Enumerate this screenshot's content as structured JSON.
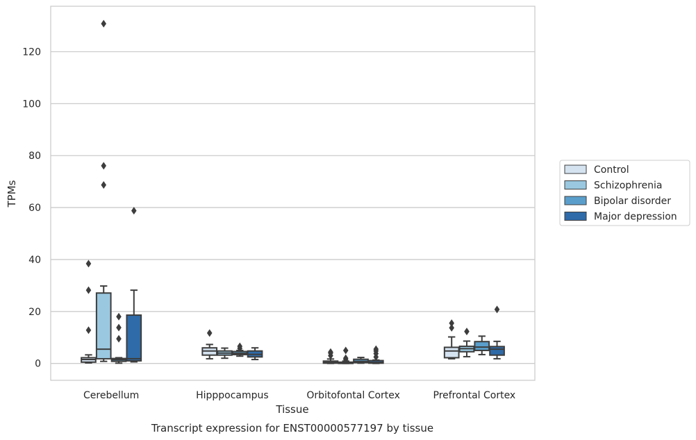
{
  "chart_data": {
    "type": "box",
    "caption": "Transcript expression for ENST00000577197 by tissue",
    "xlabel": "Tissue",
    "ylabel": "TPMs",
    "ylim": [
      -6.5,
      137.5
    ],
    "yticks": [
      0,
      20,
      40,
      60,
      80,
      100,
      120
    ],
    "grid": "horizontal",
    "legend_position": "right",
    "categories": [
      "Cerebellum",
      "Hipppocampus",
      "Orbitofontal Cortex",
      "Prefrontal Cortex"
    ],
    "series": [
      {
        "name": "Control",
        "color": "#d5e3f1",
        "boxes": [
          {
            "whislo": 0.2,
            "q1": 0.5,
            "med": 1.5,
            "q3": 2.2,
            "whishi": 3.3,
            "fliers": [
              12.8,
              28.2,
              38.4
            ]
          },
          {
            "whislo": 1.8,
            "q1": 3.2,
            "med": 4.8,
            "q3": 6.0,
            "whishi": 7.3,
            "fliers": [
              11.7
            ]
          },
          {
            "whislo": 0.0,
            "q1": 0.1,
            "med": 0.4,
            "q3": 0.9,
            "whishi": 1.7,
            "fliers": [
              3.0,
              4.0,
              4.4
            ]
          },
          {
            "whislo": 1.8,
            "q1": 2.2,
            "med": 4.8,
            "q3": 6.2,
            "whishi": 10.2,
            "fliers": [
              13.7,
              15.5
            ]
          }
        ]
      },
      {
        "name": "Schizophrenia",
        "color": "#9ac8e0",
        "boxes": [
          {
            "whislo": 0.8,
            "q1": 1.8,
            "med": 5.5,
            "q3": 27.1,
            "whishi": 29.8,
            "fliers": [
              68.7,
              76.1,
              130.8
            ]
          },
          {
            "whislo": 2.0,
            "q1": 3.2,
            "med": 4.0,
            "q3": 4.8,
            "whishi": 5.9,
            "fliers": []
          },
          {
            "whislo": 0.0,
            "q1": 0.0,
            "med": 0.2,
            "q3": 0.5,
            "whishi": 0.9,
            "fliers": [
              1.5,
              2.0,
              5.0
            ]
          },
          {
            "whislo": 2.6,
            "q1": 4.5,
            "med": 5.7,
            "q3": 6.6,
            "whishi": 8.6,
            "fliers": [
              12.3
            ]
          }
        ]
      },
      {
        "name": "Bipolar disorder",
        "color": "#5a9fcc",
        "boxes": [
          {
            "whislo": 0.1,
            "q1": 0.8,
            "med": 1.4,
            "q3": 1.9,
            "whishi": 2.2,
            "fliers": [
              9.5,
              13.8,
              18.0
            ]
          },
          {
            "whislo": 2.8,
            "q1": 3.4,
            "med": 3.9,
            "q3": 4.6,
            "whishi": 5.0,
            "fliers": [
              5.8,
              6.6
            ]
          },
          {
            "whislo": 0.1,
            "q1": 0.3,
            "med": 0.8,
            "q3": 1.6,
            "whishi": 2.3,
            "fliers": []
          },
          {
            "whislo": 3.4,
            "q1": 5.0,
            "med": 6.3,
            "q3": 8.4,
            "whishi": 10.5,
            "fliers": []
          }
        ]
      },
      {
        "name": "Major depression",
        "color": "#2f6ba8",
        "boxes": [
          {
            "whislo": 0.6,
            "q1": 1.0,
            "med": 1.8,
            "q3": 18.6,
            "whishi": 28.2,
            "fliers": [
              58.8
            ]
          },
          {
            "whislo": 1.5,
            "q1": 2.5,
            "med": 3.5,
            "q3": 4.8,
            "whishi": 6.0,
            "fliers": []
          },
          {
            "whislo": 0.0,
            "q1": 0.1,
            "med": 0.4,
            "q3": 1.1,
            "whishi": 1.3,
            "fliers": [
              2.5,
              3.8,
              4.8,
              5.5
            ]
          },
          {
            "whislo": 1.8,
            "q1": 3.2,
            "med": 5.5,
            "q3": 6.5,
            "whishi": 8.5,
            "fliers": [
              20.8
            ]
          }
        ]
      }
    ]
  }
}
